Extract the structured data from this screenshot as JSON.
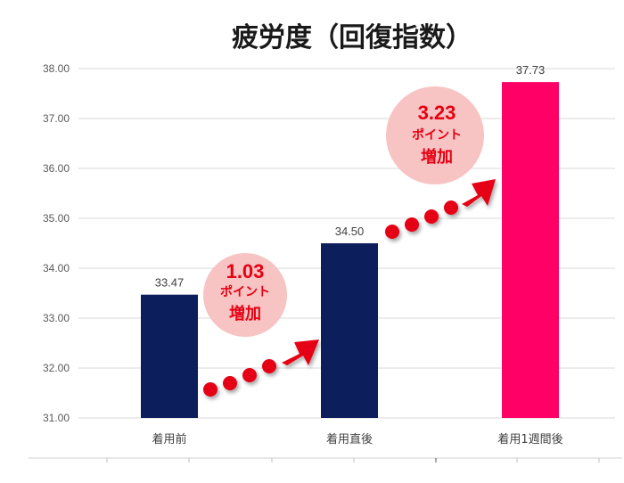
{
  "chart_data": {
    "type": "bar",
    "title": "疲労度（回復指数）",
    "categories": [
      "着用前",
      "着用直後",
      "着用1週間後"
    ],
    "values": [
      33.47,
      34.5,
      37.73
    ],
    "data_labels": [
      "33.47",
      "34.50",
      "37.73"
    ],
    "bar_colors": [
      "#0c1f5c",
      "#0c1f5c",
      "#ff0066"
    ],
    "ylim": [
      31.0,
      38.0
    ],
    "yticks": [
      "31.00",
      "32.00",
      "33.00",
      "34.00",
      "35.00",
      "36.00",
      "37.00",
      "38.00"
    ],
    "grid": true,
    "xlabel": "",
    "ylabel": "",
    "annotations": [
      {
        "value": "1.03",
        "unit": "ポイント",
        "text": "増加"
      },
      {
        "value": "3.23",
        "unit": "ポイント",
        "text": "増加"
      }
    ],
    "colors": {
      "bubble": "#f7c3c3",
      "accent": "#e60012",
      "grid": "#d9d9d9"
    }
  }
}
